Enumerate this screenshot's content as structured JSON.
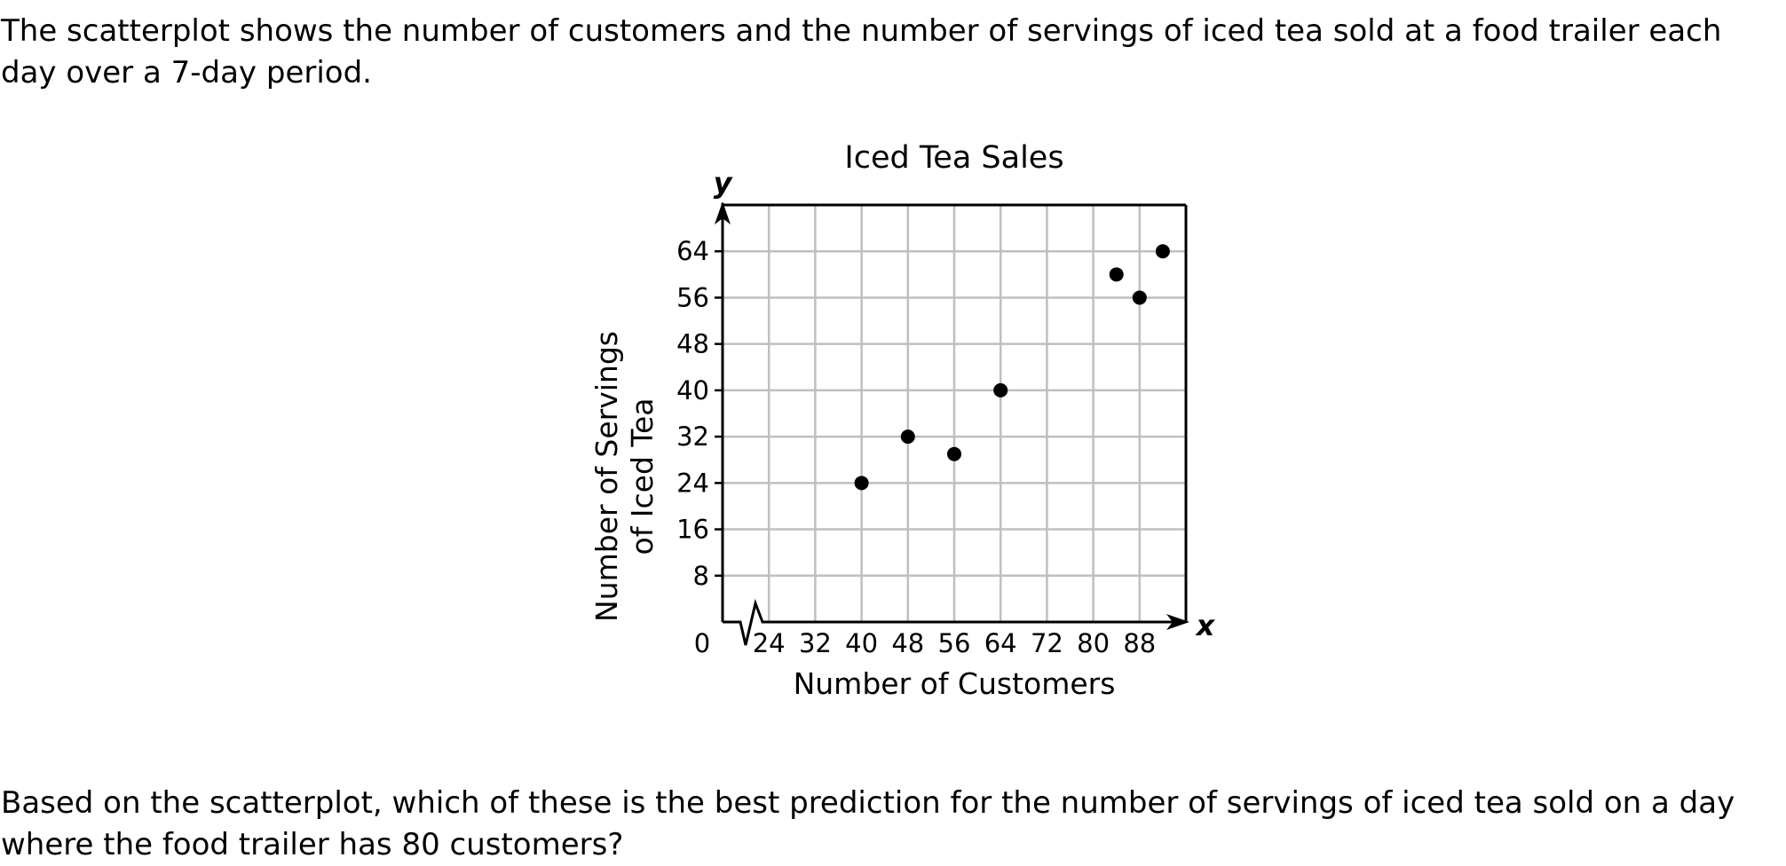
{
  "problem": {
    "intro_text": "The scatterplot shows the number of customers and the number of servings of iced tea sold at a food trailer each day over a 7-day period.",
    "question_text": "Based on the scatterplot, which of these is the best prediction for the number of servings of iced tea sold on a day where the food trailer has 80 customers?"
  },
  "chart_data": {
    "type": "scatter",
    "title": "Iced Tea Sales",
    "xlabel": "Number of Customers",
    "ylabel_lines": [
      "Number of Servings",
      "of Iced Tea"
    ],
    "x_var": "x",
    "y_var": "y",
    "origin_label": "0",
    "axis_break": true,
    "xlim": [
      16,
      96
    ],
    "ylim": [
      0,
      72
    ],
    "x_grid_step": 8,
    "y_grid_step": 8,
    "grid": true,
    "xticks": [
      24,
      32,
      40,
      48,
      56,
      64,
      72,
      80,
      88
    ],
    "yticks": [
      8,
      16,
      24,
      32,
      40,
      48,
      56,
      64
    ],
    "points": [
      {
        "x": 40,
        "y": 24
      },
      {
        "x": 48,
        "y": 32
      },
      {
        "x": 56,
        "y": 29
      },
      {
        "x": 64,
        "y": 40
      },
      {
        "x": 84,
        "y": 60
      },
      {
        "x": 88,
        "y": 56
      },
      {
        "x": 92,
        "y": 64
      }
    ],
    "colors": {
      "grid": "#bfbfbf",
      "axis": "#000000",
      "point": "#000000"
    }
  }
}
